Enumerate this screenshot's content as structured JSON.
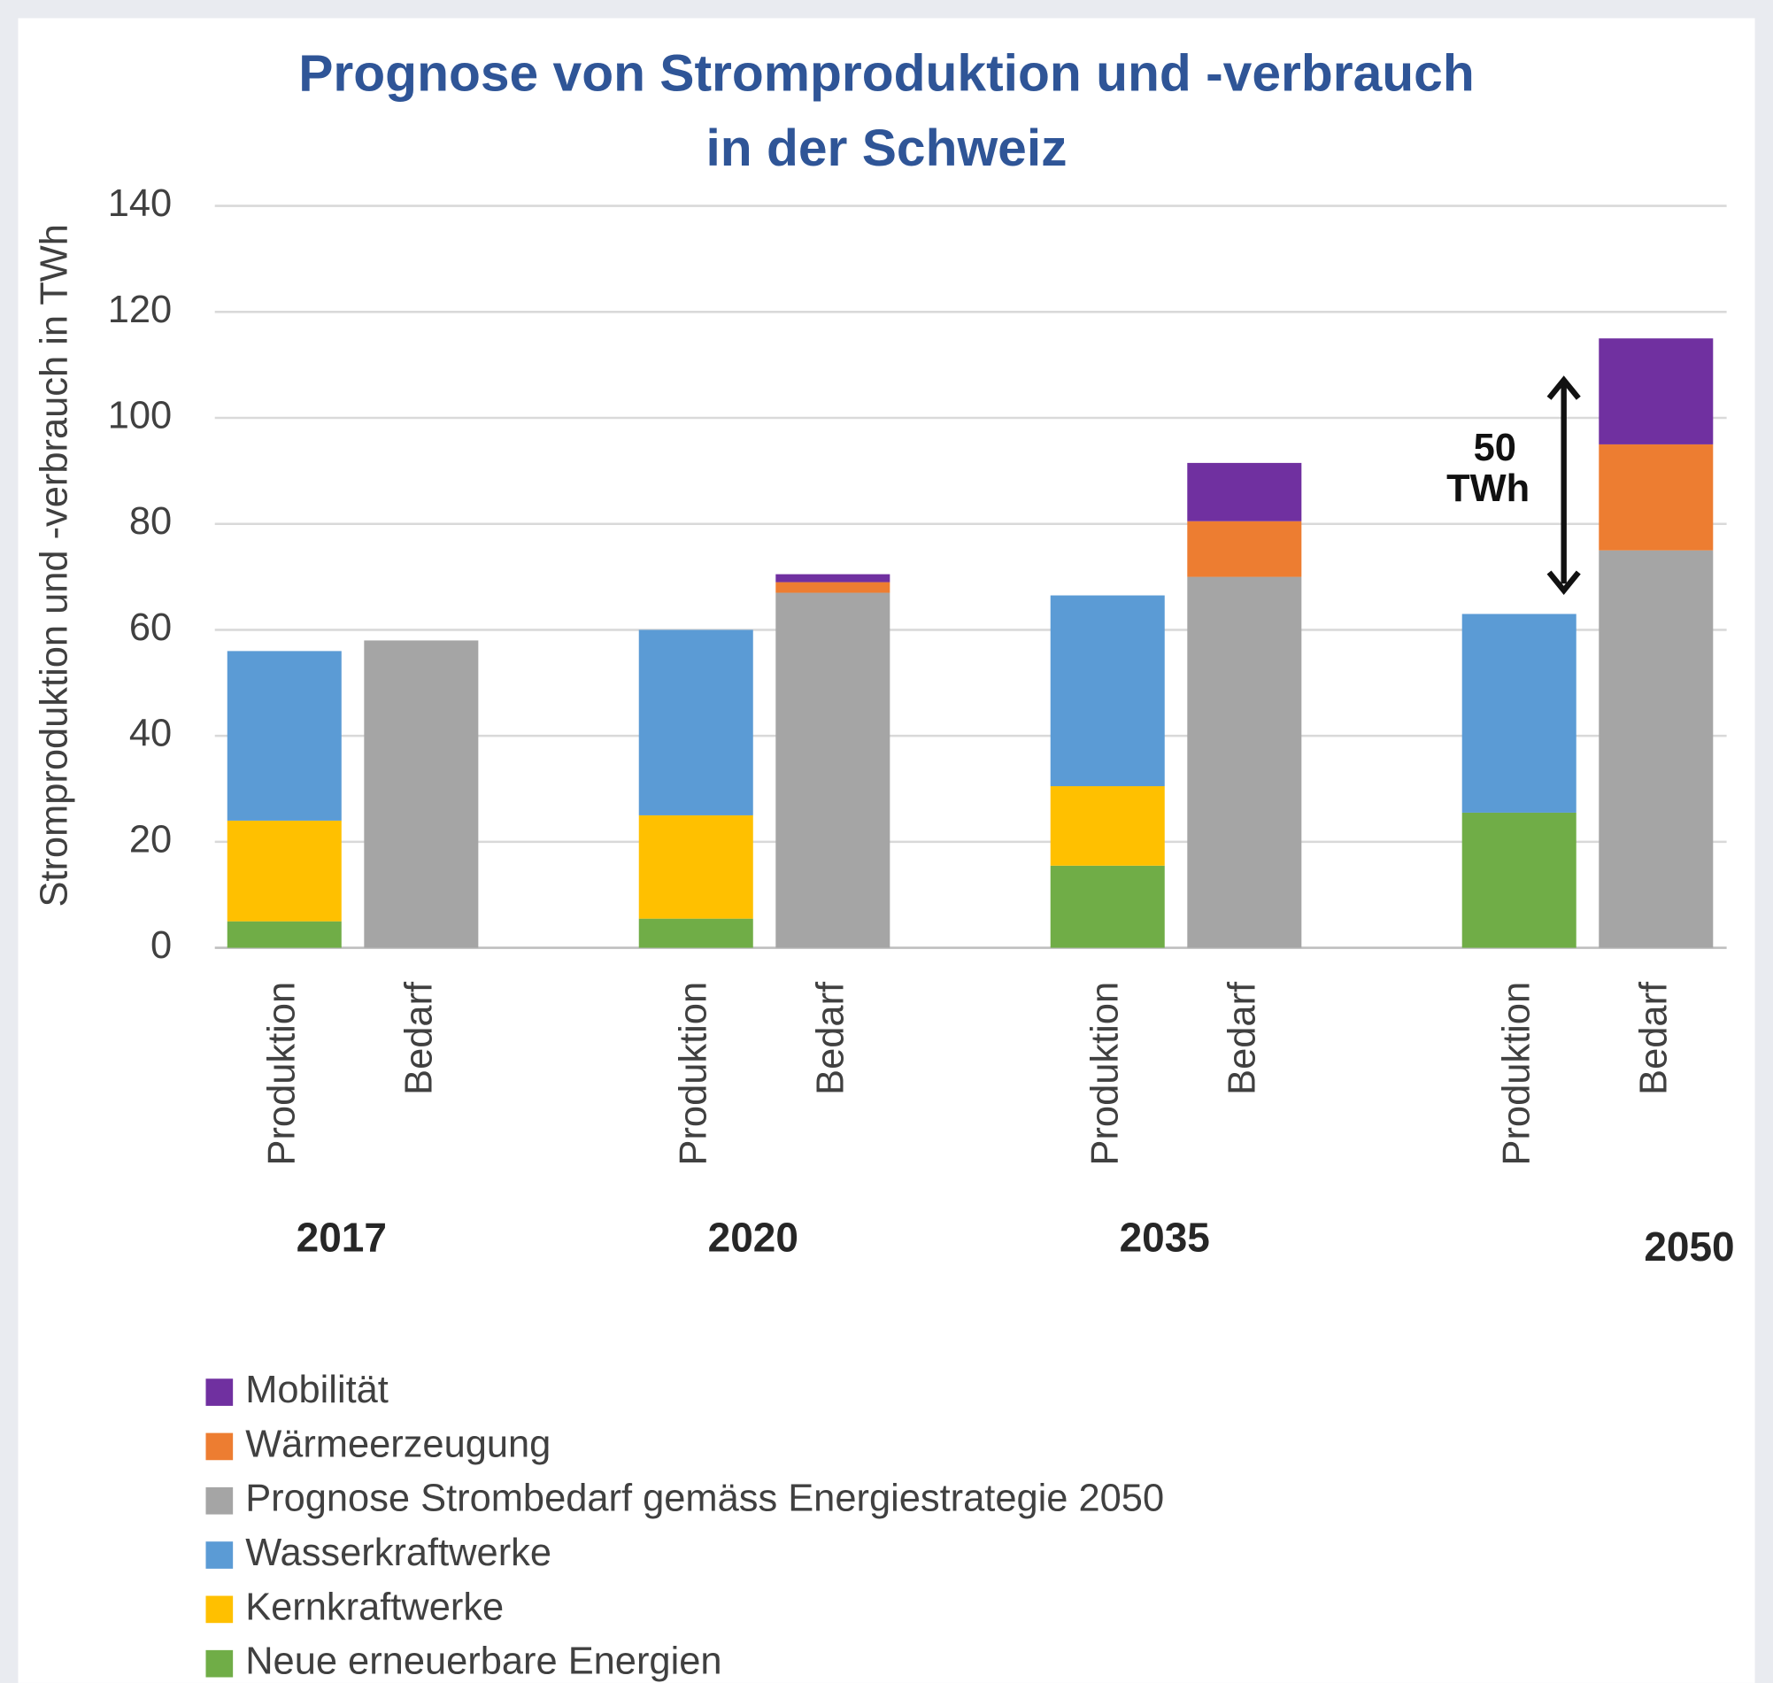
{
  "chart_data": {
    "type": "stacked-bar",
    "title": [
      "Prognose von Stromproduktion und -verbrauch",
      "in der Schweiz"
    ],
    "y_label": "Stromproduktion und -verbrauch in TWh",
    "groups": [
      "2017",
      "2020",
      "2035",
      "2050"
    ],
    "categories": [
      "Produktion",
      "Bedarf",
      "Produktion",
      "Bedarf",
      "Produktion",
      "Bedarf",
      "Produktion",
      "Bedarf"
    ],
    "series": [
      {
        "name": "Neue erneuerbare Energien",
        "color": "#70ad47",
        "values": [
          5,
          null,
          5.5,
          null,
          15.5,
          null,
          25.5,
          null
        ]
      },
      {
        "name": "Kernkraftwerke",
        "color": "#ffc000",
        "values": [
          19,
          null,
          19.5,
          null,
          15,
          null,
          null,
          null
        ]
      },
      {
        "name": "Wasserkraftwerke",
        "color": "#5b9bd5",
        "values": [
          32,
          null,
          35,
          null,
          36,
          null,
          37.5,
          null
        ]
      },
      {
        "name": "Prognose Strombedarf gemäss Energiestrategie 2050",
        "color": "#a5a5a5",
        "values": [
          null,
          58,
          null,
          67,
          null,
          70,
          null,
          75
        ]
      },
      {
        "name": "Wärmeerzeugung",
        "color": "#ed7d31",
        "values": [
          null,
          null,
          null,
          2,
          null,
          10.5,
          null,
          20
        ]
      },
      {
        "name": "Mobilität",
        "color": "#7030a0",
        "values": [
          null,
          null,
          null,
          1.5,
          null,
          11,
          null,
          20
        ]
      }
    ],
    "annotation": [
      "50",
      "TWh"
    ],
    "ylim": [
      0,
      140
    ],
    "yticks": [
      0,
      20,
      40,
      60,
      80,
      100,
      120,
      140
    ],
    "grid": true,
    "legend": "bottom-left"
  }
}
